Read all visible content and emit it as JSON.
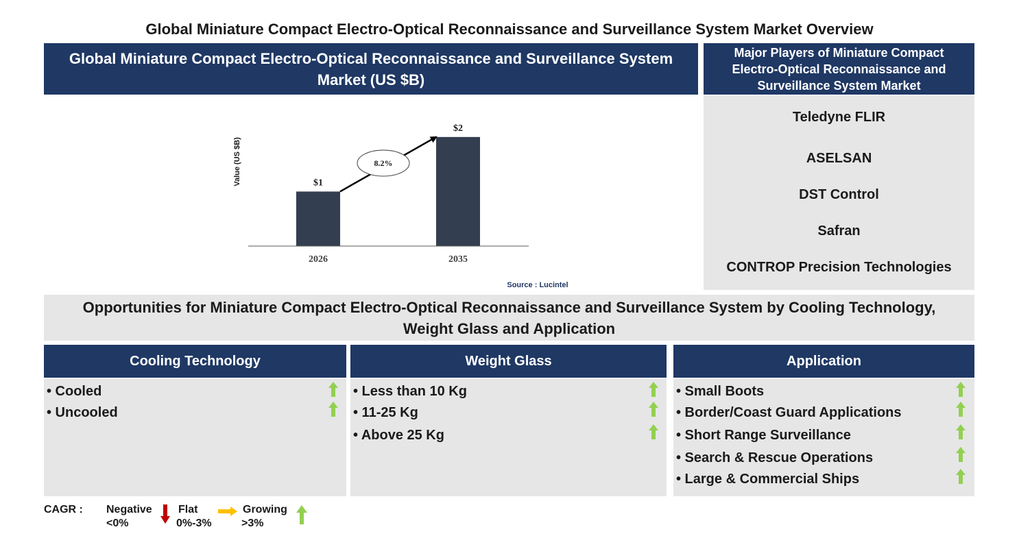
{
  "page_title": "Global Miniature Compact Electro-Optical Reconnaissance and Surveillance System Market Overview",
  "chart_header": "Global Miniature Compact Electro-Optical Reconnaissance and Surveillance System Market (US $B)",
  "players": {
    "header": "Major Players of Miniature Compact Electro-Optical Reconnaissance and Surveillance System Market",
    "items": [
      "Teledyne FLIR",
      "ASELSAN",
      "DST Control",
      "Safran",
      "CONTROP Precision Technologies"
    ]
  },
  "chart_data": {
    "type": "bar",
    "categories": [
      "2026",
      "2035"
    ],
    "values": [
      1,
      2
    ],
    "data_labels": [
      "$1",
      "$2"
    ],
    "ylabel": "Value (US $B)",
    "ylim": [
      0,
      2.3
    ],
    "cagr_label": "8.2%",
    "source": "Source : Lucintel",
    "bar_color": "#333f50",
    "grid": false
  },
  "opportunities_title": "Opportunities for Miniature Compact Electro-Optical Reconnaissance and Surveillance System by Cooling Technology, Weight Glass and Application",
  "segments": [
    {
      "title": "Cooling Technology",
      "items": [
        "• Cooled",
        "• Uncooled"
      ],
      "trends": [
        "growing",
        "growing"
      ]
    },
    {
      "title": "Weight Glass",
      "items": [
        "• Less than 10 Kg",
        "• 11-25 Kg",
        "• Above 25 Kg"
      ],
      "trends": [
        "growing",
        "growing",
        "growing"
      ]
    },
    {
      "title": "Application",
      "items": [
        "• Small Boots",
        "• Border/Coast Guard Applications",
        "• Short Range Surveillance",
        "• Search & Rescue Operations",
        "• Large & Commercial Ships"
      ],
      "trends": [
        "growing",
        "growing",
        "growing",
        "growing",
        "growing"
      ]
    }
  ],
  "legend": {
    "label": "CAGR :",
    "negative": {
      "name": "Negative",
      "range": "<0%",
      "icon": "down-arrow-icon",
      "color": "#c00000"
    },
    "flat": {
      "name": "Flat",
      "range": "0%-3%",
      "icon": "right-arrow-icon",
      "color": "#ffc000"
    },
    "growing": {
      "name": "Growing",
      "range": ">3%",
      "icon": "up-arrow-icon",
      "color": "#92d050"
    }
  },
  "colors": {
    "navy": "#1f3864",
    "panel_grey": "#e6e6e6",
    "growing": "#92d050"
  }
}
